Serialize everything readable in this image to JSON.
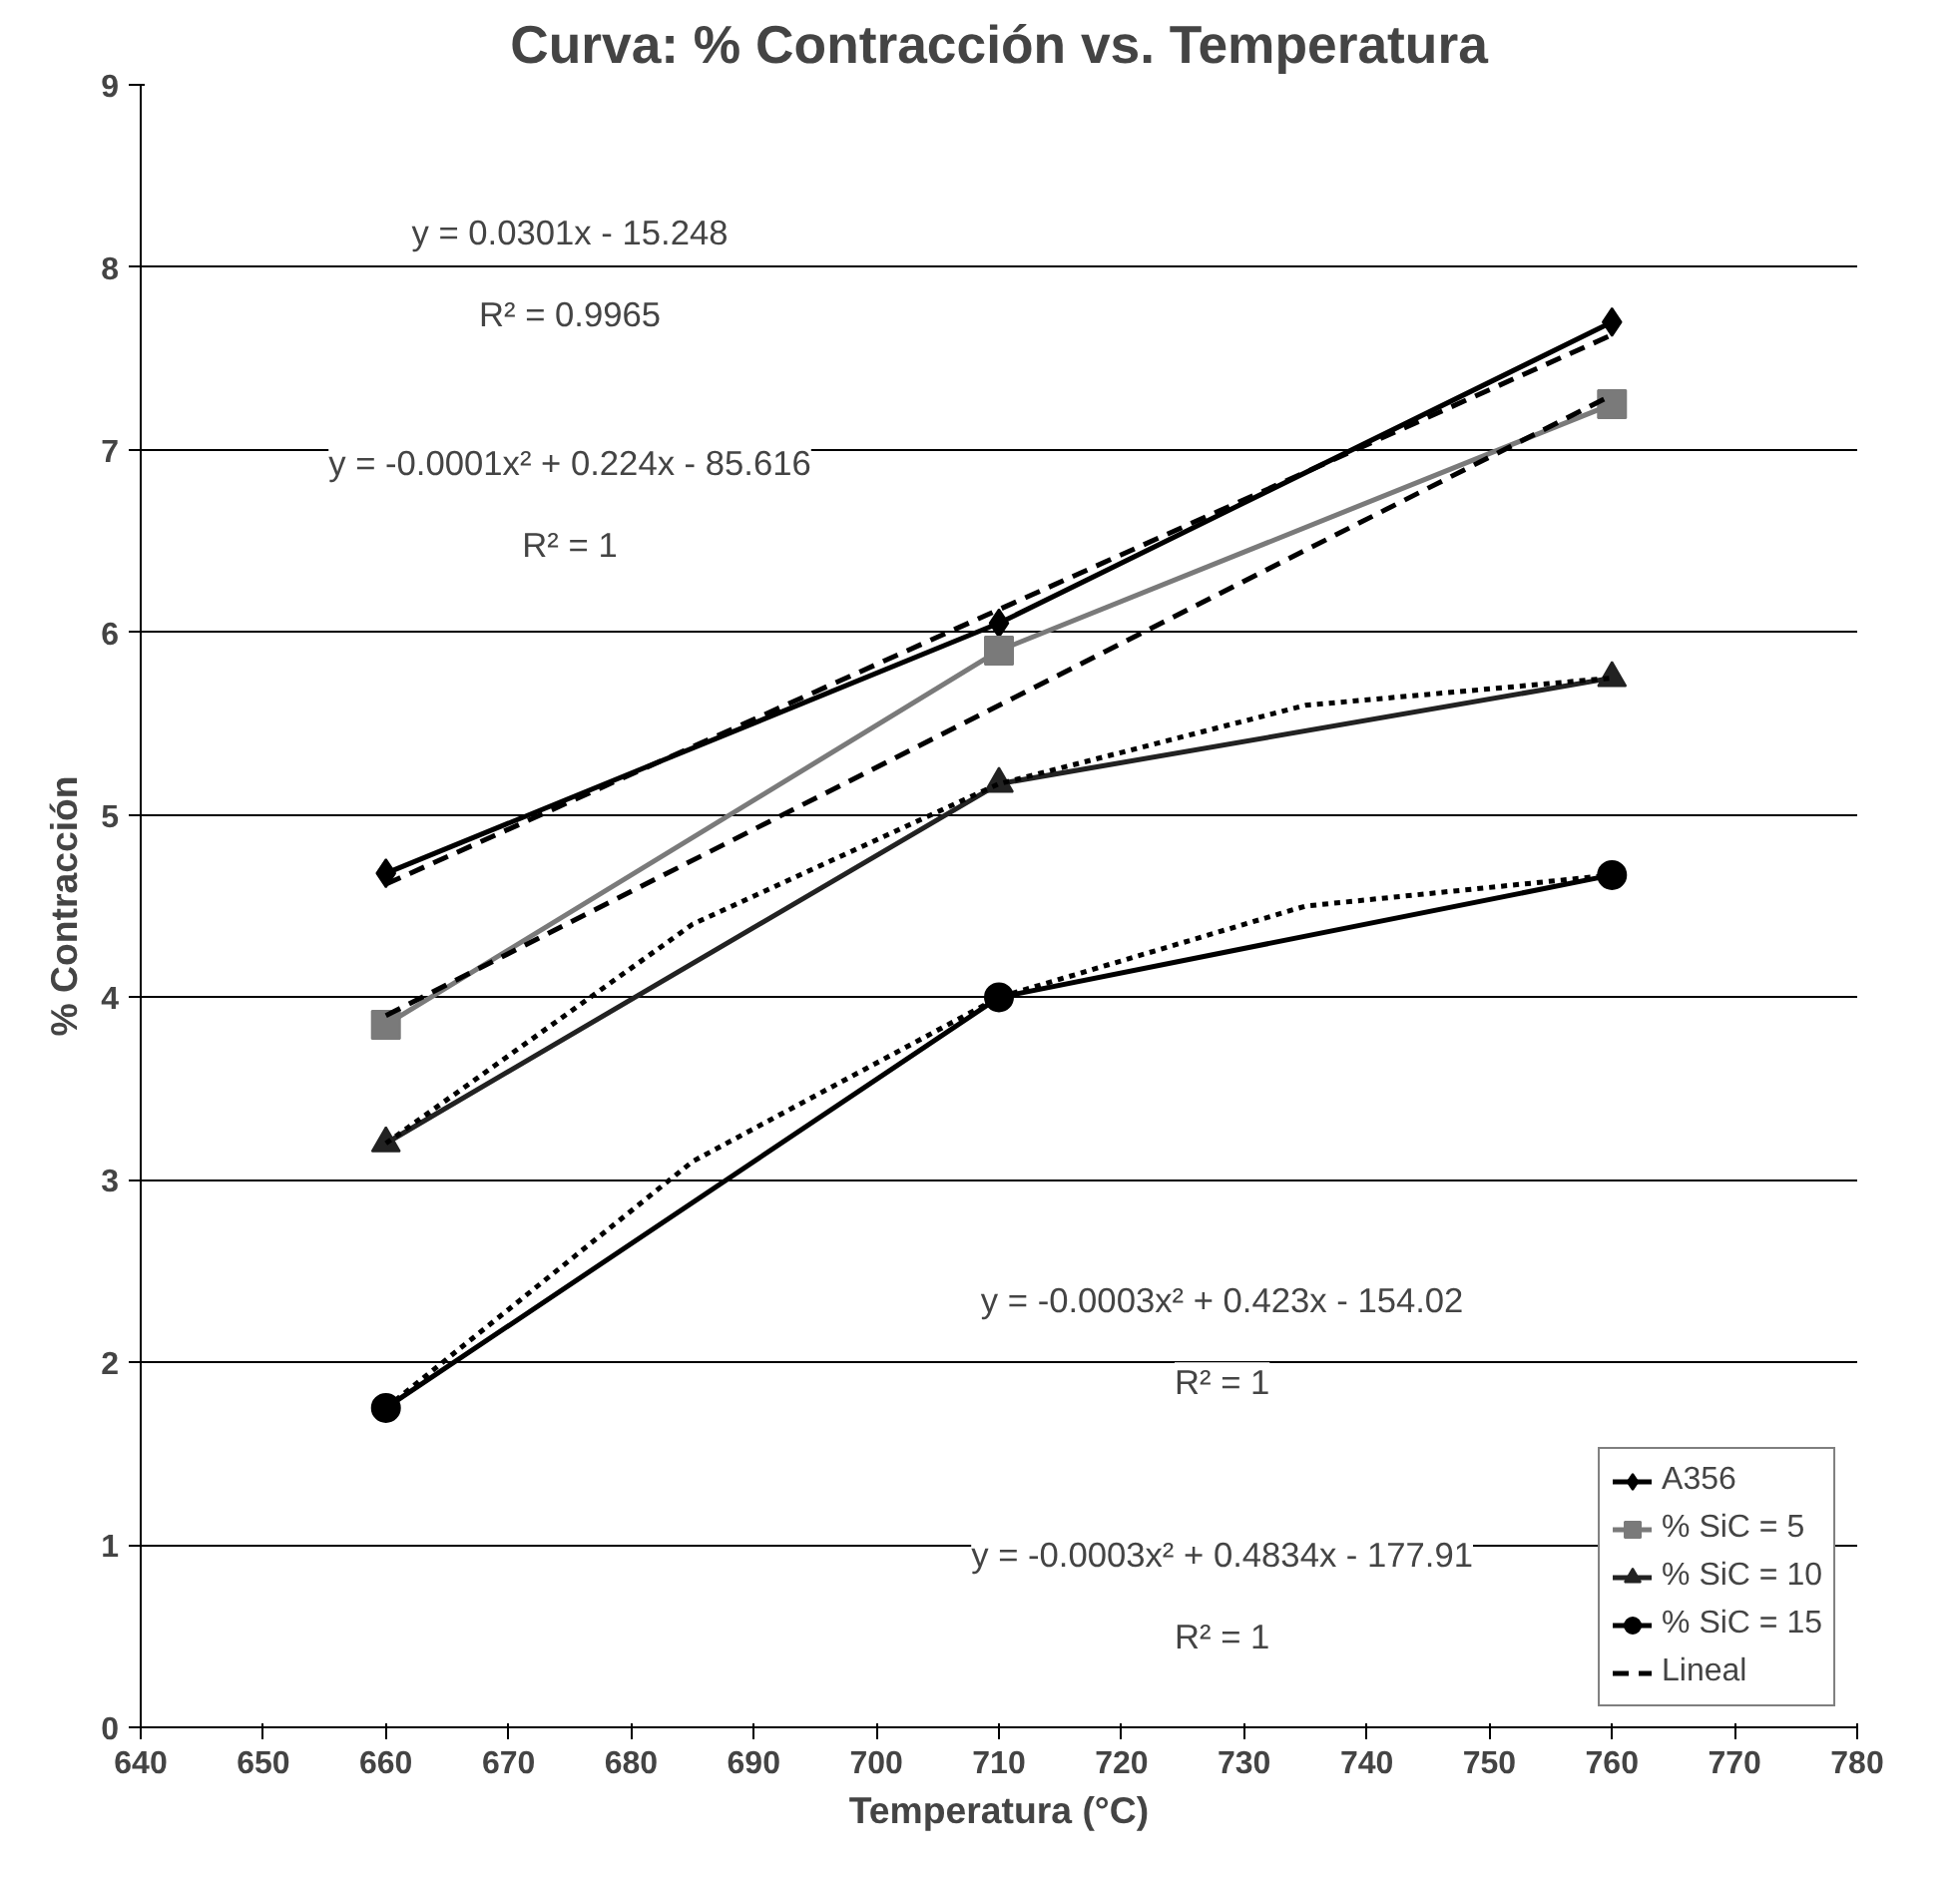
{
  "chart_data": {
    "type": "line",
    "title": "Curva: % Contracción vs. Temperatura",
    "xlabel": "Temperatura (°C)",
    "ylabel": "% Contracción",
    "xlim": [
      640,
      780
    ],
    "xticks": [
      640,
      650,
      660,
      670,
      680,
      690,
      700,
      710,
      720,
      730,
      740,
      750,
      760,
      770,
      780
    ],
    "ylim": [
      0,
      9
    ],
    "yticks": [
      0,
      1,
      2,
      3,
      4,
      5,
      6,
      7,
      8,
      9
    ],
    "grid": "y",
    "legend": "bottom right",
    "series": [
      {
        "name": "A356",
        "color": "#000000",
        "marker": "diamond",
        "line_style": "solid",
        "x": [
          660,
          710,
          760
        ],
        "values": [
          4.68,
          6.05,
          7.7
        ]
      },
      {
        "name": "% SiC = 5",
        "color": "#7a7a7a",
        "marker": "square",
        "line_style": "solid",
        "x": [
          660,
          710,
          760
        ],
        "values": [
          3.85,
          5.9,
          7.25
        ]
      },
      {
        "name": "% SiC = 10",
        "color": "#222222",
        "marker": "triangle",
        "line_style": "solid",
        "x": [
          660,
          710,
          760
        ],
        "values": [
          3.2,
          5.17,
          5.75
        ]
      },
      {
        "name": "% SiC = 15",
        "color": "#000000",
        "marker": "circle",
        "line_style": "solid",
        "x": [
          660,
          710,
          760
        ],
        "values": [
          1.75,
          4.0,
          4.67
        ]
      },
      {
        "name": "Lineal",
        "color": "#000000",
        "marker": "none",
        "line_style": "dashed",
        "x": [
          660,
          760
        ],
        "values": [
          4.62,
          7.63
        ]
      },
      {
        "color": "#000000",
        "marker": "none",
        "line_style": "dashed",
        "x": [
          660,
          760
        ],
        "values": [
          3.9,
          7.3
        ]
      },
      {
        "color": "#000000",
        "marker": "none",
        "line_style": "dotted",
        "x": [
          660,
          685,
          710,
          735,
          760
        ],
        "values": [
          3.2,
          4.4,
          5.17,
          5.6,
          5.75
        ]
      },
      {
        "color": "#000000",
        "marker": "none",
        "line_style": "dotted",
        "x": [
          660,
          685,
          710,
          735,
          760
        ],
        "values": [
          1.75,
          3.1,
          4.0,
          4.5,
          4.67
        ]
      }
    ],
    "annotations": [
      "y = 0.0301x - 15.248",
      "R² = 0.9965",
      "y = -0.0001x² + 0.224x - 85.616",
      "R² = 1",
      "y = -0.0003x² + 0.423x - 154.02",
      "R² = 1",
      "y = -0.0003x² + 0.4834x - 177.91",
      "R² = 1"
    ]
  }
}
